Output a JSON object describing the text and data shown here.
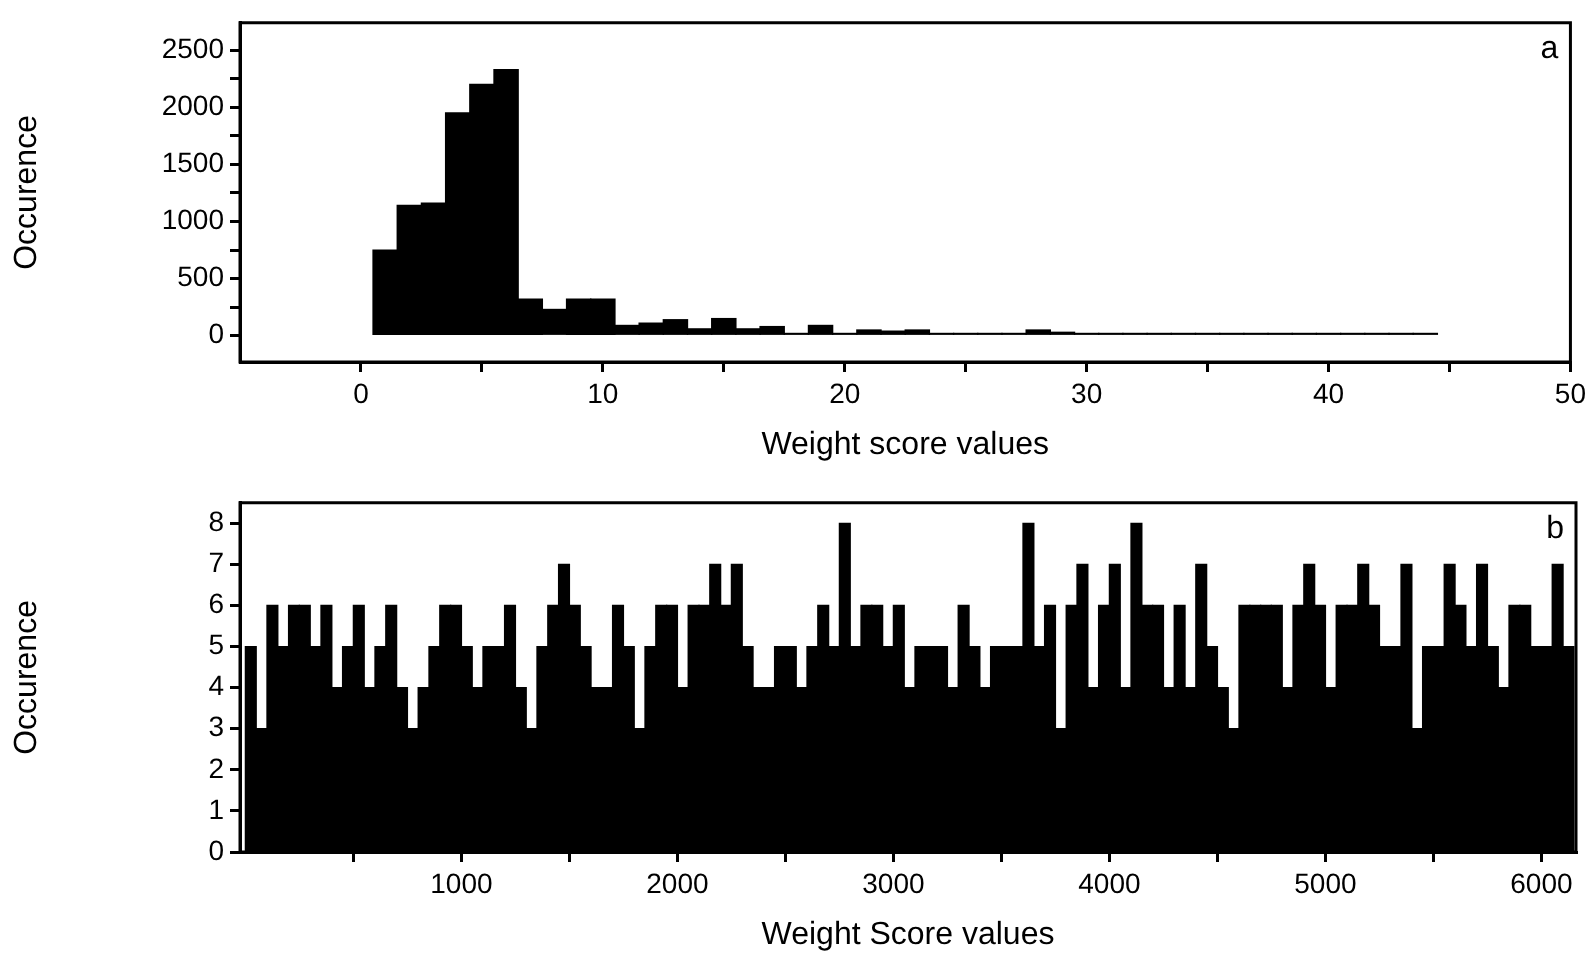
{
  "chart_data": [
    {
      "type": "histogram",
      "xlabel": "Weight score values",
      "ylabel": "Occurence",
      "annotations": [
        "a"
      ],
      "color": "#000000",
      "bins": [
        0.5,
        1.5,
        2.5,
        3.5,
        4.5,
        5.5,
        6.5,
        7.5,
        8.5,
        9.5,
        10.5,
        11.5,
        12.5,
        13.5,
        14.5,
        15.5,
        16.5,
        17.5,
        18.5,
        19.5,
        20.5,
        21.5,
        22.5,
        23.5,
        24.5,
        25.5,
        26.5,
        27.5,
        28.5,
        29.5,
        30.5,
        31.5,
        32.5,
        33.5,
        34.5,
        35.5,
        36.5,
        37.5,
        38.5,
        39.5,
        40.5,
        41.5,
        42.5,
        43.5,
        44.5
      ],
      "values": [
        750,
        1140,
        1160,
        1950,
        2200,
        2330,
        320,
        230,
        320,
        320,
        90,
        110,
        140,
        60,
        150,
        60,
        80,
        20,
        90,
        20,
        50,
        40,
        50,
        20,
        20,
        20,
        20,
        50,
        30,
        20,
        20,
        20,
        20,
        20,
        20,
        20,
        20,
        20,
        20,
        20,
        20,
        20,
        20,
        20
      ],
      "xlim": [
        -5,
        50
      ],
      "xticks": [
        0,
        {
          "value": 5,
          "label": null
        },
        10,
        {
          "value": 15,
          "label": null
        },
        20,
        {
          "value": 25,
          "label": null
        },
        30,
        {
          "value": 35,
          "label": null
        },
        40,
        {
          "value": 45,
          "label": null
        },
        50
      ],
      "ylim": [
        -230,
        2740
      ],
      "yticks": [
        0,
        {
          "value": 250,
          "label": null
        },
        500,
        {
          "value": 750,
          "label": null
        },
        1000,
        {
          "value": 1250,
          "label": null
        },
        1500,
        {
          "value": 1750,
          "label": null
        },
        2000,
        {
          "value": 2250,
          "label": null
        },
        2500
      ],
      "grid": false,
      "legend": false
    },
    {
      "type": "histogram",
      "xlabel": "Weight Score values",
      "ylabel": "Occurence",
      "annotations": [
        "b"
      ],
      "color": "#000000",
      "bins": [
        0,
        50,
        100,
        150,
        200,
        250,
        300,
        350,
        400,
        450,
        500,
        550,
        600,
        650,
        700,
        750,
        800,
        850,
        900,
        950,
        1000,
        1050,
        1100,
        1150,
        1200,
        1250,
        1300,
        1350,
        1400,
        1450,
        1500,
        1550,
        1600,
        1650,
        1700,
        1750,
        1800,
        1850,
        1900,
        1950,
        2000,
        2050,
        2100,
        2150,
        2200,
        2250,
        2300,
        2350,
        2400,
        2450,
        2500,
        2550,
        2600,
        2650,
        2700,
        2750,
        2800,
        2850,
        2900,
        2950,
        3000,
        3050,
        3100,
        3150,
        3200,
        3250,
        3300,
        3350,
        3400,
        3450,
        3500,
        3550,
        3600,
        3650,
        3700,
        3750,
        3800,
        3850,
        3900,
        3950,
        4000,
        4050,
        4100,
        4150,
        4200,
        4250,
        4300,
        4350,
        4400,
        4450,
        4500,
        4550,
        4600,
        4650,
        4700,
        4750,
        4800,
        4850,
        4900,
        4950,
        5000,
        5050,
        5100,
        5150,
        5200,
        5250,
        5300,
        5350,
        5400,
        5450,
        5500,
        5550,
        5600,
        5650,
        5700,
        5750,
        5800,
        5850,
        5900,
        5950,
        6000,
        6050,
        6100,
        6150
      ],
      "values": [
        5,
        3,
        6,
        5,
        6,
        6,
        5,
        6,
        4,
        5,
        6,
        4,
        5,
        6,
        4,
        3,
        4,
        5,
        6,
        6,
        5,
        4,
        5,
        5,
        6,
        4,
        3,
        5,
        6,
        7,
        6,
        5,
        4,
        4,
        6,
        5,
        3,
        5,
        6,
        6,
        4,
        6,
        6,
        7,
        6,
        7,
        5,
        4,
        4,
        5,
        5,
        4,
        5,
        6,
        5,
        8,
        5,
        6,
        6,
        5,
        6,
        4,
        5,
        5,
        5,
        4,
        6,
        5,
        4,
        5,
        5,
        5,
        8,
        5,
        6,
        3,
        6,
        7,
        4,
        6,
        7,
        4,
        8,
        6,
        6,
        4,
        6,
        4,
        7,
        5,
        4,
        3,
        6,
        6,
        6,
        6,
        4,
        6,
        7,
        6,
        4,
        6,
        6,
        7,
        6,
        5,
        5,
        7,
        3,
        5,
        5,
        7,
        6,
        5,
        7,
        5,
        4,
        6,
        6,
        5,
        5,
        7,
        5
      ],
      "xlim": [
        -25,
        6160
      ],
      "xticks": [
        {
          "value": 500,
          "label": null
        },
        1000,
        {
          "value": 1500,
          "label": null
        },
        2000,
        {
          "value": 2500,
          "label": null
        },
        3000,
        {
          "value": 3500,
          "label": null
        },
        4000,
        {
          "value": 4500,
          "label": null
        },
        5000,
        {
          "value": 5500,
          "label": null
        },
        6000
      ],
      "ylim": [
        0,
        8.5
      ],
      "yticks": [
        0,
        1,
        2,
        3,
        4,
        5,
        6,
        7,
        8
      ],
      "grid": false,
      "legend": false
    }
  ]
}
